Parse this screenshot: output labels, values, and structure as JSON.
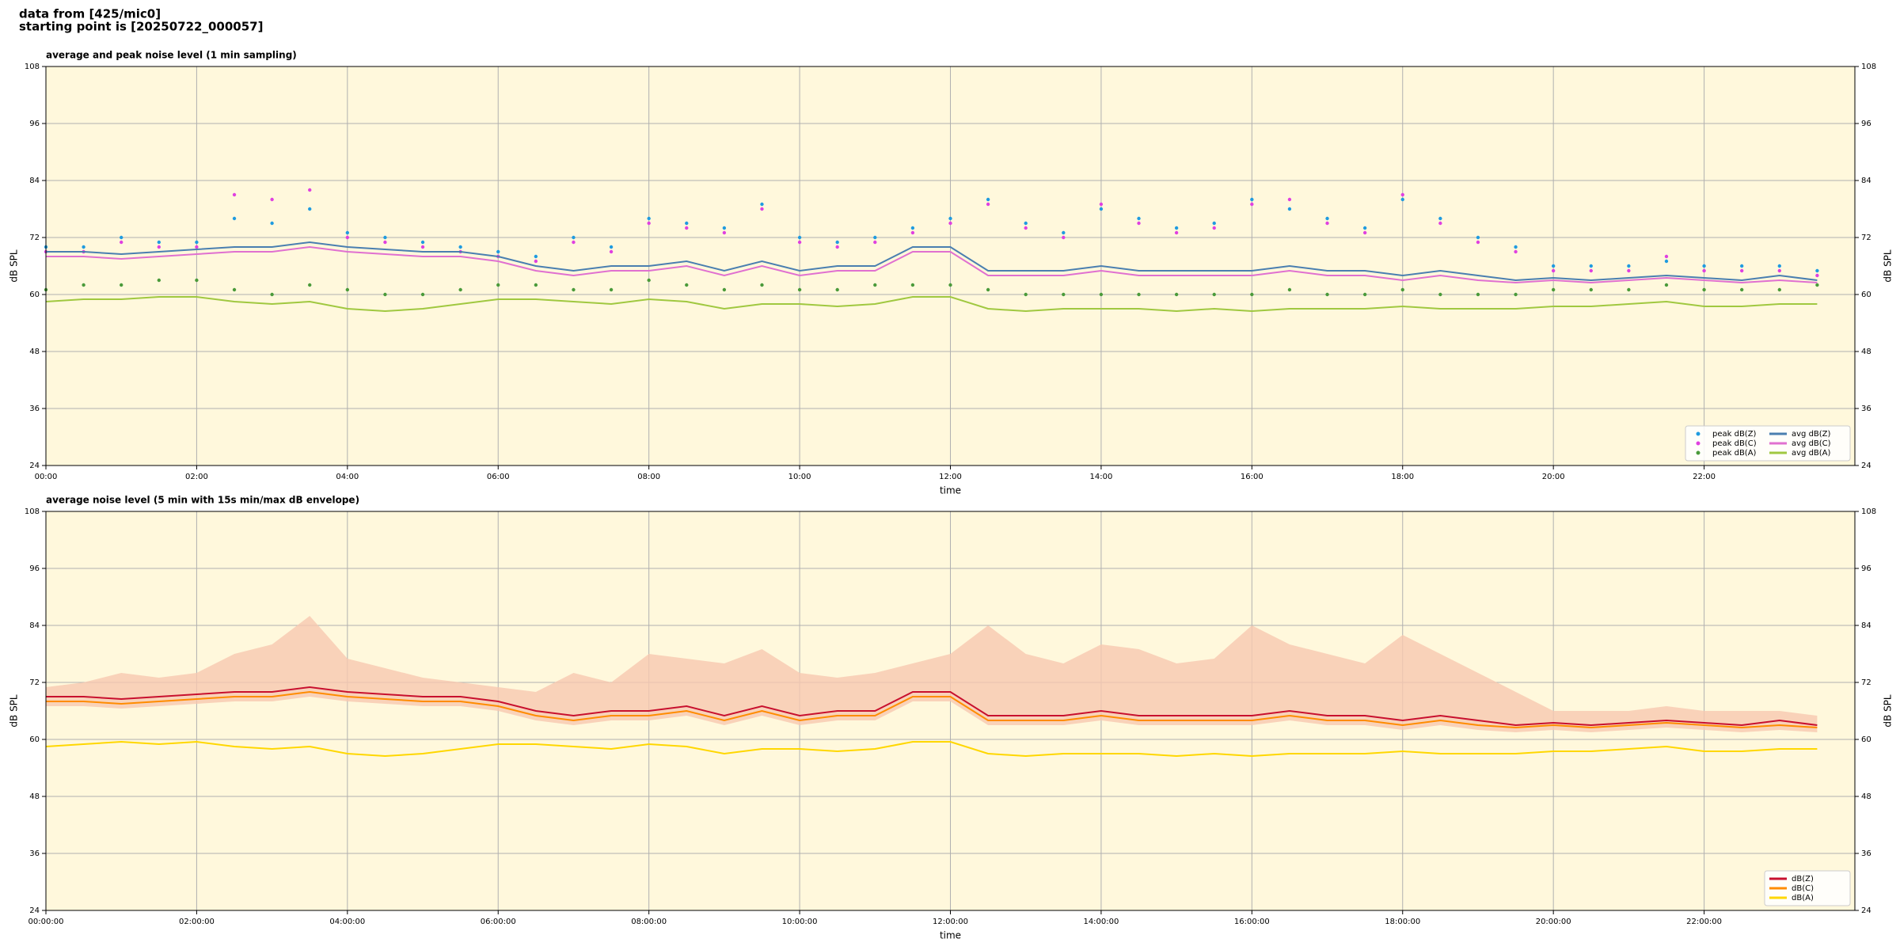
{
  "header": {
    "line1": "data from [425/mic0]",
    "line2": "starting point is [20250722_000057]"
  },
  "chart_data": [
    {
      "type": "line",
      "title": "average and peak noise level (1 min sampling)",
      "xlabel": "time",
      "ylabel": "dB SPL",
      "x": [
        "00:00",
        "00:30",
        "01:00",
        "01:30",
        "02:00",
        "02:30",
        "03:00",
        "03:30",
        "04:00",
        "04:30",
        "05:00",
        "05:30",
        "06:00",
        "06:30",
        "07:00",
        "07:30",
        "08:00",
        "08:30",
        "09:00",
        "09:30",
        "10:00",
        "10:30",
        "11:00",
        "11:30",
        "12:00",
        "12:30",
        "13:00",
        "13:30",
        "14:00",
        "14:30",
        "15:00",
        "15:30",
        "16:00",
        "16:30",
        "17:00",
        "17:30",
        "18:00",
        "18:30",
        "19:00",
        "19:30",
        "20:00",
        "20:30",
        "21:00",
        "21:30",
        "22:00",
        "22:30",
        "23:00",
        "23:30"
      ],
      "xlim": [
        "00:00",
        "24:00"
      ],
      "xticks": [
        "00:00",
        "02:00",
        "04:00",
        "06:00",
        "08:00",
        "10:00",
        "12:00",
        "14:00",
        "16:00",
        "18:00",
        "20:00",
        "22:00"
      ],
      "ylim": [
        24,
        108
      ],
      "yticks": [
        24,
        36,
        48,
        60,
        72,
        84,
        96,
        108
      ],
      "grid": true,
      "legend": "lower right",
      "legend_columns": 2,
      "series": [
        {
          "name": "peak dB(Z)",
          "type": "scatter",
          "color": "#1f9be0",
          "values": [
            70,
            70,
            72,
            71,
            71,
            76,
            75,
            78,
            73,
            72,
            71,
            70,
            69,
            68,
            72,
            70,
            76,
            75,
            74,
            79,
            72,
            71,
            72,
            74,
            76,
            80,
            75,
            73,
            78,
            76,
            74,
            75,
            80,
            78,
            76,
            74,
            80,
            76,
            72,
            70,
            66,
            66,
            66,
            67,
            66,
            66,
            66,
            65
          ]
        },
        {
          "name": "peak dB(C)",
          "type": "scatter",
          "color": "#e040e0",
          "values": [
            69,
            69,
            71,
            70,
            70,
            81,
            80,
            82,
            72,
            71,
            70,
            69,
            68,
            67,
            71,
            69,
            75,
            74,
            73,
            78,
            71,
            70,
            71,
            73,
            75,
            79,
            74,
            72,
            79,
            75,
            73,
            74,
            79,
            80,
            75,
            73,
            81,
            75,
            71,
            69,
            65,
            65,
            65,
            68,
            65,
            65,
            65,
            64
          ]
        },
        {
          "name": "peak dB(A)",
          "type": "scatter",
          "color": "#4a9a3a",
          "values": [
            61,
            62,
            62,
            63,
            63,
            61,
            60,
            62,
            61,
            60,
            60,
            61,
            62,
            62,
            61,
            61,
            63,
            62,
            61,
            62,
            61,
            61,
            62,
            62,
            62,
            61,
            60,
            60,
            60,
            60,
            60,
            60,
            60,
            61,
            60,
            60,
            61,
            60,
            60,
            60,
            61,
            61,
            61,
            62,
            61,
            61,
            61,
            62
          ]
        },
        {
          "name": "avg dB(Z)",
          "type": "line",
          "color": "#4a7fb0",
          "values": [
            69,
            69,
            68.5,
            69,
            69.5,
            70,
            70,
            71,
            70,
            69.5,
            69,
            69,
            68,
            66,
            65,
            66,
            66,
            67,
            65,
            67,
            65,
            66,
            66,
            70,
            70,
            65,
            65,
            65,
            66,
            65,
            65,
            65,
            65,
            66,
            65,
            65,
            64,
            65,
            64,
            63,
            63.5,
            63,
            63.5,
            64,
            63.5,
            63,
            64,
            63
          ]
        },
        {
          "name": "avg dB(C)",
          "type": "line",
          "color": "#e070d0",
          "values": [
            68,
            68,
            67.5,
            68,
            68.5,
            69,
            69,
            70,
            69,
            68.5,
            68,
            68,
            67,
            65,
            64,
            65,
            65,
            66,
            64,
            66,
            64,
            65,
            65,
            69,
            69,
            64,
            64,
            64,
            65,
            64,
            64,
            64,
            64,
            65,
            64,
            64,
            63,
            64,
            63,
            62.5,
            63,
            62.5,
            63,
            63.5,
            63,
            62.5,
            63,
            62.5
          ]
        },
        {
          "name": "avg dB(A)",
          "type": "line",
          "color": "#a0c840",
          "values": [
            58.5,
            59,
            59,
            59.5,
            59.5,
            58.5,
            58,
            58.5,
            57,
            56.5,
            57,
            58,
            59,
            59,
            58.5,
            58,
            59,
            58.5,
            57,
            58,
            58,
            57.5,
            58,
            59.5,
            59.5,
            57,
            56.5,
            57,
            57,
            57,
            56.5,
            57,
            56.5,
            57,
            57,
            57,
            57.5,
            57,
            57,
            57,
            57.5,
            57.5,
            58,
            58.5,
            57.5,
            57.5,
            58,
            58
          ]
        }
      ]
    },
    {
      "type": "line",
      "title": "average noise level (5 min with 15s min/max dB envelope)",
      "xlabel": "time",
      "ylabel": "dB SPL",
      "x": [
        "00:00:00",
        "00:30:00",
        "01:00:00",
        "01:30:00",
        "02:00:00",
        "02:30:00",
        "03:00:00",
        "03:30:00",
        "04:00:00",
        "04:30:00",
        "05:00:00",
        "05:30:00",
        "06:00:00",
        "06:30:00",
        "07:00:00",
        "07:30:00",
        "08:00:00",
        "08:30:00",
        "09:00:00",
        "09:30:00",
        "10:00:00",
        "10:30:00",
        "11:00:00",
        "11:30:00",
        "12:00:00",
        "12:30:00",
        "13:00:00",
        "13:30:00",
        "14:00:00",
        "14:30:00",
        "15:00:00",
        "15:30:00",
        "16:00:00",
        "16:30:00",
        "17:00:00",
        "17:30:00",
        "18:00:00",
        "18:30:00",
        "19:00:00",
        "19:30:00",
        "20:00:00",
        "20:30:00",
        "21:00:00",
        "21:30:00",
        "22:00:00",
        "22:30:00",
        "23:00:00",
        "23:30:00"
      ],
      "xlim": [
        "00:00:00",
        "24:00:00"
      ],
      "xticks": [
        "00:00:00",
        "02:00:00",
        "04:00:00",
        "06:00:00",
        "08:00:00",
        "10:00:00",
        "12:00:00",
        "14:00:00",
        "16:00:00",
        "18:00:00",
        "20:00:00",
        "22:00:00"
      ],
      "ylim": [
        24,
        108
      ],
      "yticks": [
        24,
        36,
        48,
        60,
        72,
        84,
        96,
        108
      ],
      "grid": true,
      "legend": "lower right",
      "legend_columns": 1,
      "envelope": {
        "color": "#f8c8b0",
        "lower": [
          67,
          67,
          66.5,
          67,
          67.5,
          68,
          68,
          69,
          68,
          67.5,
          67,
          67,
          66,
          64,
          63,
          64,
          64,
          65,
          63,
          65,
          63,
          64,
          64,
          68,
          68,
          63,
          63,
          63,
          64,
          63,
          63,
          63,
          63,
          64,
          63,
          63,
          62,
          63,
          62,
          61.5,
          62,
          61.5,
          62,
          62.5,
          62,
          61.5,
          62,
          61.5
        ],
        "upper": [
          71,
          72,
          74,
          73,
          74,
          78,
          80,
          86,
          77,
          75,
          73,
          72,
          71,
          70,
          74,
          72,
          78,
          77,
          76,
          79,
          74,
          73,
          74,
          76,
          78,
          84,
          78,
          76,
          80,
          79,
          76,
          77,
          84,
          80,
          78,
          76,
          82,
          78,
          74,
          70,
          66,
          66,
          66,
          67,
          66,
          66,
          66,
          65
        ]
      },
      "series": [
        {
          "name": "dB(Z)",
          "type": "line",
          "color": "#c8102e",
          "values": [
            69,
            69,
            68.5,
            69,
            69.5,
            70,
            70,
            71,
            70,
            69.5,
            69,
            69,
            68,
            66,
            65,
            66,
            66,
            67,
            65,
            67,
            65,
            66,
            66,
            70,
            70,
            65,
            65,
            65,
            66,
            65,
            65,
            65,
            65,
            66,
            65,
            65,
            64,
            65,
            64,
            63,
            63.5,
            63,
            63.5,
            64,
            63.5,
            63,
            64,
            63
          ]
        },
        {
          "name": "dB(C)",
          "type": "line",
          "color": "#ff8c00",
          "values": [
            68,
            68,
            67.5,
            68,
            68.5,
            69,
            69,
            70,
            69,
            68.5,
            68,
            68,
            67,
            65,
            64,
            65,
            65,
            66,
            64,
            66,
            64,
            65,
            65,
            69,
            69,
            64,
            64,
            64,
            65,
            64,
            64,
            64,
            64,
            65,
            64,
            64,
            63,
            64,
            63,
            62.5,
            63,
            62.5,
            63,
            63.5,
            63,
            62.5,
            63,
            62.5
          ]
        },
        {
          "name": "dB(A)",
          "type": "line",
          "color": "#ffd700",
          "values": [
            58.5,
            59,
            59.5,
            59,
            59.5,
            58.5,
            58,
            58.5,
            57,
            56.5,
            57,
            58,
            59,
            59,
            58.5,
            58,
            59,
            58.5,
            57,
            58,
            58,
            57.5,
            58,
            59.5,
            59.5,
            57,
            56.5,
            57,
            57,
            57,
            56.5,
            57,
            56.5,
            57,
            57,
            57,
            57.5,
            57,
            57,
            57,
            57.5,
            57.5,
            58,
            58.5,
            57.5,
            57.5,
            58,
            58
          ]
        }
      ]
    }
  ]
}
